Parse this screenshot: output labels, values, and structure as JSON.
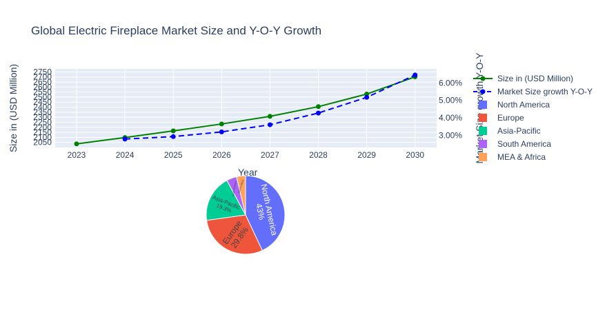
{
  "chart_data": [
    {
      "type": "line",
      "title": "Global Electric Fireplace Market Size and Y-O-Y Growth",
      "xlabel": "Year",
      "ylabel": "Size in (USD Million)",
      "y2label": "Market Size growth Y-O-Y",
      "x": [
        "2023",
        "2024",
        "2025",
        "2026",
        "2027",
        "2028",
        "2029",
        "2030"
      ],
      "series": [
        {
          "name": "Size in (USD Million)",
          "axis": "left",
          "color": "#008000",
          "dash": "solid",
          "values": [
            2035,
            2098,
            2164,
            2233,
            2309,
            2405,
            2530,
            2701
          ]
        },
        {
          "name": "Market Size growth Y-O-Y",
          "axis": "right",
          "color": "#0000ff",
          "dash": "dash",
          "values": [
            null,
            2.78,
            2.92,
            3.19,
            3.6,
            4.27,
            5.17,
            6.45
          ]
        }
      ],
      "yticks": [
        "2050",
        "2100",
        "2150",
        "2200",
        "2250",
        "2300",
        "2350",
        "2400",
        "2450",
        "2500",
        "2550",
        "2600",
        "2650",
        "2700",
        "2750"
      ],
      "y2ticks": [
        "3.00%",
        "4.00%",
        "5.00%",
        "6.00%"
      ],
      "ylim": [
        2000,
        2780
      ],
      "y2lim": [
        2.3,
        6.8
      ],
      "grid": true
    },
    {
      "type": "pie",
      "labels": [
        "North America",
        "Europe",
        "Asia-Pacific",
        "South America",
        "MEA & Africa"
      ],
      "values": [
        43,
        29.8,
        19.3,
        4.2,
        3.7
      ],
      "slice_labels": [
        {
          "name": "North America",
          "pct": "43%"
        },
        {
          "name": "Europe",
          "pct": "29.8%"
        },
        {
          "name": "Asia-Pacific",
          "pct": "19.3%"
        },
        {
          "name": "South America",
          "pct": ""
        },
        {
          "name": "MEA & Africa",
          "pct": ""
        }
      ],
      "colors": [
        "#636efa",
        "#ef553b",
        "#00cc96",
        "#ab63fa",
        "#ffa15a"
      ]
    }
  ],
  "legend": {
    "placement": "right",
    "items": [
      {
        "label": "Size in (USD Million)",
        "kind": "line",
        "color": "#008000",
        "dash": "solid"
      },
      {
        "label": "Market Size growth Y-O-Y",
        "kind": "line",
        "color": "#0000ff",
        "dash": "dash"
      },
      {
        "label": "North America",
        "kind": "box",
        "color": "#636efa"
      },
      {
        "label": "Europe",
        "kind": "box",
        "color": "#ef553b"
      },
      {
        "label": "Asia-Pacific",
        "kind": "box",
        "color": "#00cc96"
      },
      {
        "label": "South America",
        "kind": "box",
        "color": "#ab63fa"
      },
      {
        "label": "MEA & Africa",
        "kind": "box",
        "color": "#ffa15a"
      }
    ]
  }
}
